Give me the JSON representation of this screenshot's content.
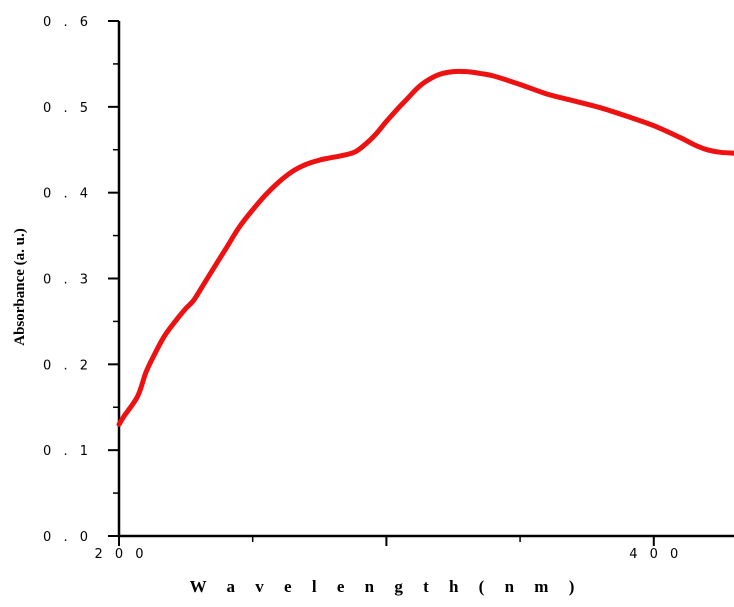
{
  "chart_data": {
    "type": "line",
    "title": "",
    "xlabel": "W a v e l e n g t h ( n m )",
    "ylabel": "Absorbance (a. u.)",
    "xlim": [
      200,
      430
    ],
    "ylim": [
      0.0,
      0.6
    ],
    "x_ticks": [
      200,
      300,
      400
    ],
    "x_tick_labels": [
      "2 0 0",
      "",
      "4 0 0"
    ],
    "y_ticks": [
      0.0,
      0.1,
      0.2,
      0.3,
      0.4,
      0.5,
      0.6
    ],
    "y_tick_labels": [
      "0 . 0",
      "0 . 1",
      "0 . 2",
      "0 . 3",
      "0 . 4",
      "0 . 5",
      "0 . 6"
    ],
    "grid": false,
    "series": [
      {
        "color": "#ee1111",
        "x": [
          200,
          202,
          207,
          210,
          213,
          217,
          221,
          225,
          228,
          232,
          236,
          240,
          245,
          250,
          255,
          260,
          265,
          270,
          275,
          278,
          283,
          288,
          292,
          296,
          300,
          304,
          308,
          312,
          316,
          320,
          325,
          330,
          335,
          340,
          350,
          360,
          370,
          380,
          390,
          400,
          410,
          415,
          420,
          425,
          430
        ],
        "y": [
          0.13,
          0.14,
          0.163,
          0.19,
          0.21,
          0.233,
          0.25,
          0.265,
          0.275,
          0.295,
          0.315,
          0.335,
          0.36,
          0.38,
          0.398,
          0.413,
          0.425,
          0.433,
          0.438,
          0.44,
          0.443,
          0.447,
          0.456,
          0.468,
          0.483,
          0.497,
          0.51,
          0.523,
          0.532,
          0.538,
          0.541,
          0.541,
          0.539,
          0.536,
          0.526,
          0.515,
          0.507,
          0.499,
          0.489,
          0.478,
          0.464,
          0.456,
          0.45,
          0.447,
          0.446
        ]
      }
    ]
  }
}
